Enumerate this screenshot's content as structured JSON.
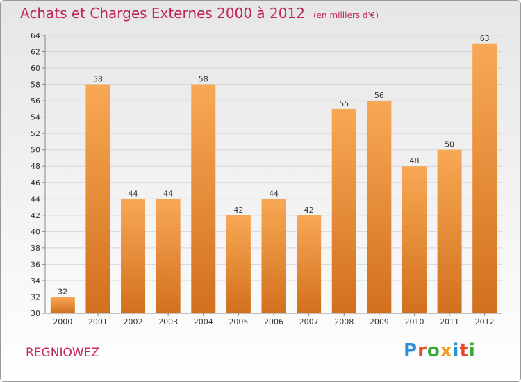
{
  "header": {
    "title": "Achats et Charges Externes 2000 à 2012",
    "unit": "(en milliers d'€)"
  },
  "footer": {
    "commune": "REGNIOWEZ",
    "logo_text": "Proxiti"
  },
  "colors": {
    "title": "#c0255a",
    "bar_top": "#f8a855",
    "bar_bottom": "#d2701e",
    "logo": [
      "#2a8fd6",
      "#e8472b",
      "#38a83a",
      "#f0a020",
      "#2a8fd6",
      "#e8472b",
      "#38a83a"
    ]
  },
  "chart_data": {
    "type": "bar",
    "title": "Achats et Charges Externes 2000 à 2012",
    "subtitle": "(en milliers d'€)",
    "xlabel": "",
    "ylabel": "",
    "categories": [
      "2000",
      "2001",
      "2002",
      "2003",
      "2004",
      "2005",
      "2006",
      "2007",
      "2008",
      "2009",
      "2010",
      "2011",
      "2012"
    ],
    "values": [
      32,
      58,
      44,
      44,
      58,
      42,
      44,
      42,
      55,
      56,
      48,
      50,
      63
    ],
    "ylim": [
      30,
      64
    ],
    "yticks": [
      30,
      32,
      34,
      36,
      38,
      40,
      42,
      44,
      46,
      48,
      50,
      52,
      54,
      56,
      58,
      60,
      62,
      64
    ],
    "grid": true
  }
}
